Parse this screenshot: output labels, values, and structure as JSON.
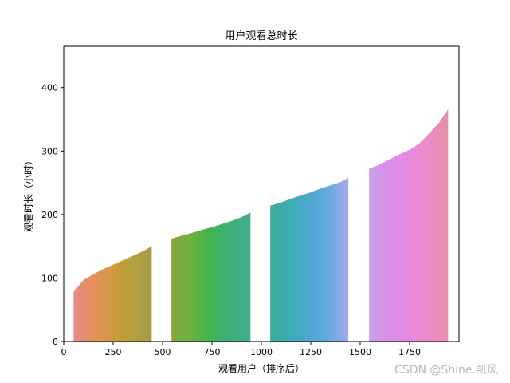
{
  "chart_data": {
    "type": "bar",
    "title": "用户观看总时长",
    "xlabel": "观看用户（排序后）",
    "ylabel": "观看时长（小时）",
    "xlim": [
      0,
      2000
    ],
    "ylim": [
      0,
      465
    ],
    "xticks": [
      0,
      250,
      500,
      750,
      1000,
      1250,
      1500,
      1750
    ],
    "yticks": [
      0,
      100,
      200,
      300,
      400
    ],
    "grid": false,
    "legend": "none",
    "series": [
      {
        "x": [
          50,
          100,
          150,
          200,
          250,
          300,
          350,
          400,
          445
        ],
        "values": [
          78,
          97,
          106,
          114,
          121,
          128,
          135,
          142,
          150
        ],
        "colors": [
          "#e88a88",
          "#e58e5e",
          "#d09a3c",
          "#b4a03c",
          "#a49a4c"
        ]
      },
      {
        "x": [
          545,
          600,
          650,
          700,
          750,
          800,
          850,
          900,
          945
        ],
        "values": [
          162,
          167,
          171,
          176,
          180,
          185,
          190,
          196,
          203
        ],
        "colors": [
          "#84a83c",
          "#6cb040",
          "#40b450",
          "#3cb078",
          "#44ac90"
        ]
      },
      {
        "x": [
          1045,
          1100,
          1150,
          1200,
          1250,
          1300,
          1350,
          1400,
          1440
        ],
        "values": [
          214,
          219,
          225,
          230,
          235,
          241,
          246,
          251,
          258
        ],
        "colors": [
          "#3cac98",
          "#3cacb4",
          "#4ca8d0",
          "#68a8e4",
          "#a8a8ec"
        ]
      },
      {
        "x": [
          1545,
          1600,
          1650,
          1700,
          1750,
          1800,
          1850,
          1900,
          1945
        ],
        "values": [
          272,
          279,
          287,
          295,
          302,
          312,
          328,
          345,
          366
        ],
        "colors": [
          "#c8a0e8",
          "#d890e8",
          "#e888e0",
          "#ea8cc8",
          "#e890a8"
        ]
      }
    ]
  },
  "watermark": "CSDN @Shine.凯风"
}
